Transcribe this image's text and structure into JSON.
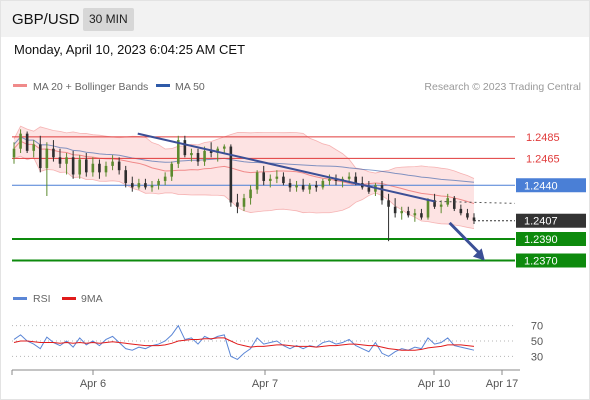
{
  "header": {
    "pair": "GBP/USD",
    "timeframe": "30 MIN"
  },
  "datetime": "Monday, April 10, 2023 6:04:25 AM CET",
  "legend": {
    "bollinger": "MA 20 + Bollinger Bands",
    "ma50": "MA 50",
    "credit": "Research © 2023 Trading Central",
    "rsi": "RSI",
    "rsi_ma": "9MA"
  },
  "colors": {
    "bollinger": "#f08a8a",
    "bollinger_fill": "#fde3e3",
    "ma50": "#2e5aa8",
    "resistance": "#e03a3a",
    "pivot": "#4a7fd6",
    "support": "#0d8a0d",
    "current": "#333333",
    "trendline": "#3b4f96",
    "rsi": "#5b86d6",
    "rsi_ma": "#e01b1b"
  },
  "chart_data": [
    {
      "type": "candlestick",
      "title": "",
      "xlabel": "",
      "ylabel": "",
      "ylim": [
        1.235,
        1.251
      ],
      "x_ticks": [
        "Apr 6",
        "Apr 7",
        "Apr 10",
        "Apr 17"
      ],
      "levels": [
        {
          "name": "resistance-2",
          "value": 1.2485,
          "label": "1.2485",
          "style": "resistance"
        },
        {
          "name": "resistance-1",
          "value": 1.2465,
          "label": "1.2465",
          "style": "resistance"
        },
        {
          "name": "pivot",
          "value": 1.244,
          "label": "1.2440",
          "style": "pivot"
        },
        {
          "name": "current-price",
          "value": 1.2407,
          "label": "1.2407",
          "style": "current"
        },
        {
          "name": "support-1",
          "value": 1.239,
          "label": "1.2390",
          "style": "support"
        },
        {
          "name": "support-2",
          "value": 1.237,
          "label": "1.2370",
          "style": "support"
        }
      ],
      "trendline": {
        "from": [
          0.25,
          1.2488
        ],
        "to": [
          0.84,
          1.2425
        ]
      },
      "forecast_arrow": {
        "from": [
          0.87,
          1.2405
        ],
        "to": [
          0.94,
          1.237
        ]
      },
      "ohlc": [
        [
          1.2466,
          1.248,
          1.246,
          1.2474
        ],
        [
          1.2474,
          1.2492,
          1.247,
          1.2488
        ],
        [
          1.2488,
          1.249,
          1.247,
          1.2472
        ],
        [
          1.2472,
          1.2482,
          1.2466,
          1.2478
        ],
        [
          1.2478,
          1.2486,
          1.2452,
          1.2456
        ],
        [
          1.2456,
          1.248,
          1.243,
          1.2474
        ],
        [
          1.2474,
          1.2482,
          1.2462,
          1.2466
        ],
        [
          1.2466,
          1.2474,
          1.2456,
          1.246
        ],
        [
          1.246,
          1.247,
          1.245,
          1.2466
        ],
        [
          1.2466,
          1.2472,
          1.2446,
          1.245
        ],
        [
          1.245,
          1.2468,
          1.2446,
          1.2464
        ],
        [
          1.2464,
          1.247,
          1.2448,
          1.2452
        ],
        [
          1.2452,
          1.2466,
          1.2448,
          1.246
        ],
        [
          1.246,
          1.2464,
          1.2446,
          1.2452
        ],
        [
          1.2452,
          1.2462,
          1.2448,
          1.2458
        ],
        [
          1.2458,
          1.2468,
          1.2454,
          1.2462
        ],
        [
          1.2462,
          1.2466,
          1.245,
          1.2454
        ],
        [
          1.2454,
          1.2458,
          1.2438,
          1.2442
        ],
        [
          1.2442,
          1.2448,
          1.2434,
          1.2438
        ],
        [
          1.2438,
          1.2446,
          1.2436,
          1.2442
        ],
        [
          1.2442,
          1.2446,
          1.2436,
          1.2438
        ],
        [
          1.2438,
          1.2444,
          1.2434,
          1.244
        ],
        [
          1.244,
          1.2446,
          1.2436,
          1.2444
        ],
        [
          1.2444,
          1.2452,
          1.244,
          1.2448
        ],
        [
          1.2448,
          1.2462,
          1.2444,
          1.246
        ],
        [
          1.246,
          1.2486,
          1.2456,
          1.2482
        ],
        [
          1.2482,
          1.2486,
          1.2466,
          1.2468
        ],
        [
          1.2468,
          1.2474,
          1.2462,
          1.247
        ],
        [
          1.247,
          1.2474,
          1.2458,
          1.2462
        ],
        [
          1.2462,
          1.2476,
          1.2458,
          1.2472
        ],
        [
          1.2472,
          1.248,
          1.2466,
          1.247
        ],
        [
          1.247,
          1.2476,
          1.2462,
          1.2474
        ],
        [
          1.2474,
          1.2478,
          1.247,
          1.2476
        ],
        [
          1.2476,
          1.2478,
          1.242,
          1.2424
        ],
        [
          1.2424,
          1.2432,
          1.2414,
          1.242
        ],
        [
          1.242,
          1.2432,
          1.2416,
          1.2428
        ],
        [
          1.2428,
          1.244,
          1.2422,
          1.2436
        ],
        [
          1.2436,
          1.2454,
          1.2432,
          1.2452
        ],
        [
          1.2452,
          1.2458,
          1.244,
          1.2444
        ],
        [
          1.2444,
          1.245,
          1.2438,
          1.2446
        ],
        [
          1.2446,
          1.2454,
          1.2442,
          1.2448
        ],
        [
          1.2448,
          1.2452,
          1.244,
          1.2442
        ],
        [
          1.2442,
          1.2446,
          1.2434,
          1.2438
        ],
        [
          1.2438,
          1.2444,
          1.2434,
          1.244
        ],
        [
          1.244,
          1.2446,
          1.2434,
          1.2436
        ],
        [
          1.2436,
          1.2442,
          1.2432,
          1.244
        ],
        [
          1.244,
          1.2444,
          1.2434,
          1.2438
        ],
        [
          1.2438,
          1.2446,
          1.2436,
          1.2444
        ],
        [
          1.2444,
          1.245,
          1.244,
          1.2446
        ],
        [
          1.2446,
          1.245,
          1.244,
          1.2444
        ],
        [
          1.2444,
          1.2448,
          1.2438,
          1.2446
        ],
        [
          1.2446,
          1.2452,
          1.2442,
          1.2448
        ],
        [
          1.2448,
          1.2452,
          1.244,
          1.2442
        ],
        [
          1.2442,
          1.2448,
          1.2436,
          1.2438
        ],
        [
          1.2438,
          1.2444,
          1.2432,
          1.2434
        ],
        [
          1.2434,
          1.2442,
          1.243,
          1.244
        ],
        [
          1.244,
          1.2444,
          1.2422,
          1.2426
        ],
        [
          1.2426,
          1.2432,
          1.2388,
          1.242
        ],
        [
          1.242,
          1.2428,
          1.241,
          1.2414
        ],
        [
          1.2414,
          1.242,
          1.2408,
          1.2416
        ],
        [
          1.2416,
          1.242,
          1.241,
          1.2412
        ],
        [
          1.2412,
          1.2418,
          1.2406,
          1.2414
        ],
        [
          1.2414,
          1.2418,
          1.2408,
          1.241
        ],
        [
          1.241,
          1.2428,
          1.2408,
          1.2426
        ],
        [
          1.2426,
          1.2432,
          1.2418,
          1.242
        ],
        [
          1.242,
          1.2426,
          1.2414,
          1.2422
        ],
        [
          1.2422,
          1.2432,
          1.242,
          1.2428
        ],
        [
          1.2428,
          1.243,
          1.2416,
          1.2418
        ],
        [
          1.2418,
          1.2422,
          1.2412,
          1.2414
        ],
        [
          1.2414,
          1.2418,
          1.2408,
          1.241
        ],
        [
          1.241,
          1.2414,
          1.2404,
          1.2407
        ]
      ]
    },
    {
      "type": "line",
      "title": "",
      "xlabel": "",
      "ylabel": "",
      "ylim": [
        20,
        80
      ],
      "y_ticks": [
        70,
        50,
        30
      ],
      "series": [
        {
          "name": "RSI",
          "values": [
            52,
            58,
            50,
            46,
            40,
            55,
            48,
            44,
            50,
            42,
            54,
            45,
            50,
            44,
            52,
            56,
            48,
            40,
            38,
            42,
            40,
            44,
            46,
            50,
            58,
            70,
            52,
            54,
            46,
            56,
            52,
            56,
            58,
            30,
            26,
            34,
            40,
            54,
            46,
            48,
            50,
            44,
            40,
            44,
            40,
            44,
            42,
            48,
            50,
            46,
            48,
            52,
            44,
            40,
            36,
            48,
            34,
            30,
            36,
            40,
            38,
            42,
            40,
            54,
            46,
            48,
            54,
            44,
            42,
            40,
            38
          ]
        },
        {
          "name": "9MA",
          "values": [
            48,
            50,
            50,
            49,
            48,
            48,
            48,
            47,
            48,
            47,
            48,
            47,
            48,
            47,
            48,
            49,
            48,
            47,
            46,
            45,
            44,
            44,
            44,
            45,
            47,
            50,
            51,
            52,
            52,
            53,
            53,
            54,
            54,
            50,
            46,
            44,
            42,
            43,
            43,
            44,
            45,
            45,
            44,
            43,
            43,
            43,
            42,
            43,
            44,
            44,
            45,
            46,
            46,
            45,
            44,
            44,
            42,
            40,
            39,
            38,
            38,
            38,
            39,
            41,
            42,
            43,
            45,
            45,
            45,
            44,
            43
          ]
        }
      ]
    }
  ]
}
